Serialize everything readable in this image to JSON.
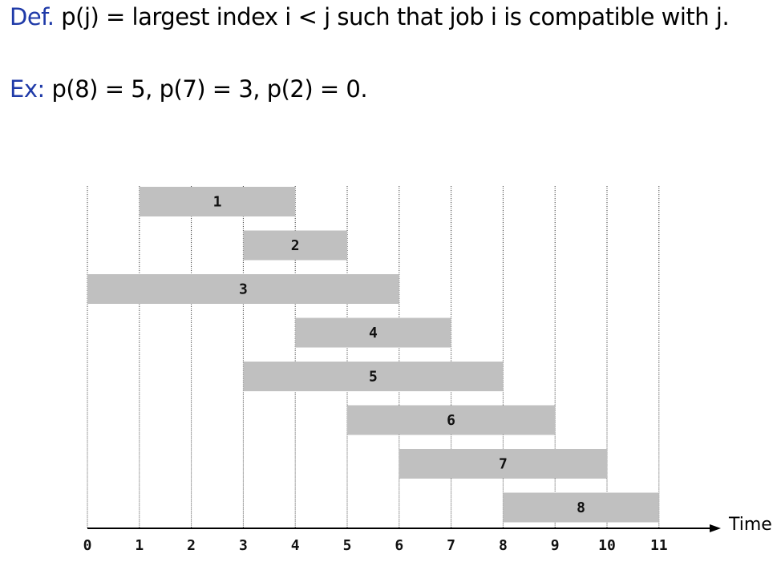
{
  "definition": {
    "label": "Def.",
    "text": "p(j) = largest index i < j such that job i is compatible with j."
  },
  "example": {
    "label": "Ex:",
    "text": "p(8) = 5, p(7) = 3, p(2) = 0."
  },
  "chart_data": {
    "type": "gantt",
    "xlabel": "Time",
    "xlim": [
      0,
      11
    ],
    "ticks": [
      "0",
      "1",
      "2",
      "3",
      "4",
      "5",
      "6",
      "7",
      "8",
      "9",
      "10",
      "11"
    ],
    "grid": true,
    "jobs": [
      {
        "label": "1",
        "start": 1,
        "end": 4
      },
      {
        "label": "2",
        "start": 3,
        "end": 5
      },
      {
        "label": "3",
        "start": 0,
        "end": 6
      },
      {
        "label": "4",
        "start": 4,
        "end": 7
      },
      {
        "label": "5",
        "start": 3,
        "end": 8
      },
      {
        "label": "6",
        "start": 5,
        "end": 9
      },
      {
        "label": "7",
        "start": 6,
        "end": 10
      },
      {
        "label": "8",
        "start": 8,
        "end": 11
      }
    ],
    "colors": {
      "bar": "#c0c0c0",
      "grid": "#333333",
      "axis": "#000000"
    }
  }
}
